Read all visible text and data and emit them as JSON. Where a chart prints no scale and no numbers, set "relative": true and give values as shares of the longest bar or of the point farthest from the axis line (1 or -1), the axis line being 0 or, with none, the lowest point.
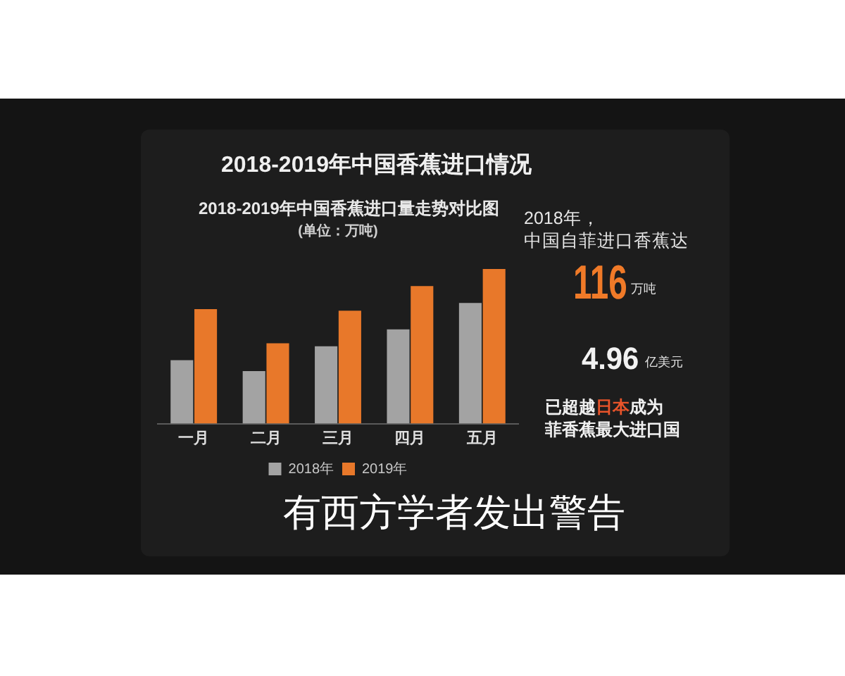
{
  "chart_data": {
    "type": "bar",
    "title": "2018-2019年中国香蕉进口情况",
    "subtitle": "2018-2019年中国香蕉进口量走势对比图",
    "categories": [
      "一月",
      "二月",
      "三月",
      "四月",
      "五月"
    ],
    "relative": true,
    "series": [
      {
        "name": "2018年",
        "color": "#a3a3a3",
        "values": [
          0.41,
          0.34,
          0.5,
          0.61,
          0.78
        ]
      },
      {
        "name": "2019年",
        "color": "#e8782a",
        "values": [
          0.74,
          0.52,
          0.73,
          0.89,
          1
        ]
      }
    ],
    "legend": "bottom",
    "annotations": [
      "(单位：万吨)",
      "2018年，",
      "中国自菲进口香蕉达",
      "116",
      "万吨",
      "4.96",
      "亿美元",
      "已超越",
      "日本",
      "成为",
      "菲香蕉最大进口国",
      "有西方学者发出警告"
    ]
  }
}
